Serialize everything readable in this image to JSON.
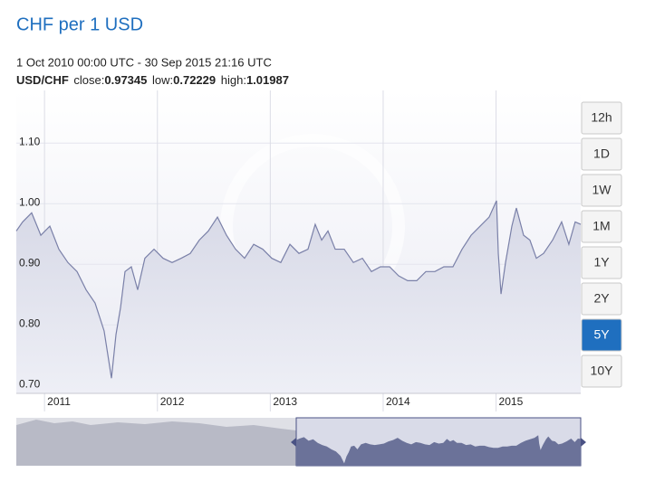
{
  "chart_data": {
    "type": "area",
    "title": "CHF per 1 USD",
    "subtitle": "1 Oct 2010 00:00 UTC - 30 Sep 2015 21:16 UTC",
    "info": {
      "pair": "USD/CHF",
      "close_label": "close:",
      "close": 0.97345,
      "low_label": "low:",
      "low": 0.72229,
      "high_label": "high:",
      "high": 1.01987
    },
    "x": [
      2010.75,
      2010.806,
      2010.886,
      2010.967,
      2011.047,
      2011.127,
      2011.207,
      2011.288,
      2011.368,
      2011.448,
      2011.528,
      2011.593,
      2011.633,
      2011.673,
      2011.713,
      2011.769,
      2011.825,
      2011.889,
      2011.97,
      2012.05,
      2012.13,
      2012.211,
      2012.291,
      2012.371,
      2012.451,
      2012.532,
      2012.612,
      2012.692,
      2012.772,
      2012.853,
      2012.933,
      2013.013,
      2013.093,
      2013.174,
      2013.254,
      2013.334,
      2013.398,
      2013.455,
      2013.511,
      2013.575,
      2013.655,
      2013.736,
      2013.816,
      2013.896,
      2013.976,
      2014.057,
      2014.137,
      2014.217,
      2014.297,
      2014.378,
      2014.458,
      2014.538,
      2014.618,
      2014.699,
      2014.779,
      2014.859,
      2014.939,
      2015.004,
      2015.02,
      2015.044,
      2015.084,
      2015.14,
      2015.18,
      2015.244,
      2015.3,
      2015.357,
      2015.421,
      2015.501,
      2015.581,
      2015.645,
      2015.701,
      2015.75
    ],
    "series": [
      {
        "name": "USD/CHF",
        "color": "#7a80a8",
        "values": [
          0.955,
          0.97,
          0.985,
          0.948,
          0.963,
          0.925,
          0.903,
          0.888,
          0.858,
          0.836,
          0.79,
          0.712,
          0.784,
          0.828,
          0.888,
          0.896,
          0.858,
          0.91,
          0.925,
          0.91,
          0.903,
          0.91,
          0.918,
          0.94,
          0.955,
          0.978,
          0.948,
          0.925,
          0.91,
          0.933,
          0.925,
          0.91,
          0.903,
          0.933,
          0.918,
          0.925,
          0.966,
          0.94,
          0.955,
          0.925,
          0.925,
          0.903,
          0.91,
          0.888,
          0.896,
          0.896,
          0.881,
          0.873,
          0.873,
          0.888,
          0.888,
          0.896,
          0.896,
          0.925,
          0.948,
          0.963,
          0.978,
          1.005,
          0.918,
          0.851,
          0.903,
          0.963,
          0.993,
          0.948,
          0.94,
          0.91,
          0.918,
          0.94,
          0.97,
          0.933,
          0.97,
          0.966
        ]
      }
    ],
    "xlim": [
      2010.75,
      2015.75
    ],
    "xticks": [
      2011,
      2012,
      2013,
      2014,
      2015
    ],
    "ylim": [
      0.687,
      1.187
    ],
    "yticks": [
      {
        "value": 1.1,
        "label": "1.10"
      },
      {
        "value": 1.0,
        "label": "1.00"
      },
      {
        "value": 0.9,
        "label": "0.90"
      },
      {
        "value": 0.8,
        "label": "0.80"
      },
      {
        "value": 0.7,
        "label": "0.70"
      }
    ],
    "grid": true,
    "range_buttons": [
      "12h",
      "1D",
      "1W",
      "1M",
      "1Y",
      "2Y",
      "5Y",
      "10Y"
    ],
    "selected_range": "5Y"
  }
}
